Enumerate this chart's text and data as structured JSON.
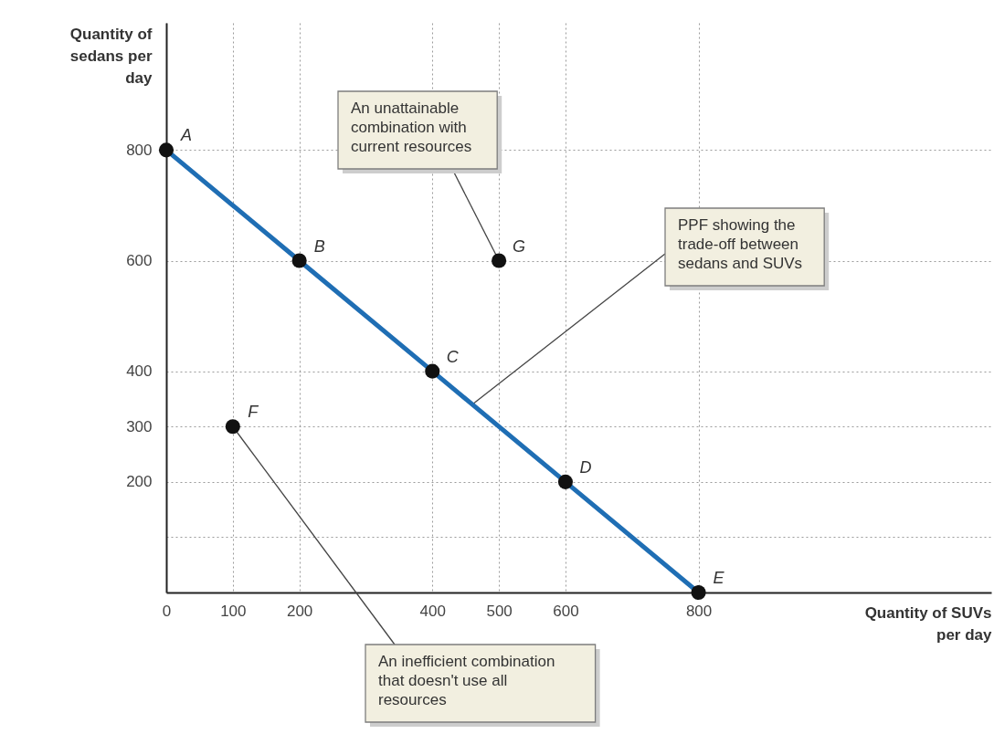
{
  "chart_data": {
    "type": "line",
    "xlabel": "Quantity of SUVs per day",
    "ylabel": "Quantity of sedans per day",
    "xlim": [
      0,
      1240
    ],
    "ylim": [
      0,
      1030
    ],
    "xticks": [
      0,
      100,
      200,
      400,
      500,
      600,
      800
    ],
    "yticks": [
      {
        "value": 100,
        "label": null
      },
      200,
      300,
      400,
      600,
      800
    ],
    "grid": true,
    "marker": "circle",
    "series": [
      {
        "color": "#1f6eb4",
        "marker": "none",
        "x": [
          0,
          200,
          400,
          600,
          800
        ],
        "values": [
          800,
          600,
          400,
          200,
          0
        ]
      },
      {
        "type": "scatter",
        "color": "#111111",
        "x": [
          0,
          200,
          400,
          600,
          800,
          100,
          500
        ],
        "values": [
          800,
          600,
          400,
          200,
          0,
          300,
          600
        ]
      }
    ],
    "annotations": [
      {
        "text": "A",
        "x": 0,
        "y": 800
      },
      {
        "text": "B",
        "x": 200,
        "y": 600
      },
      {
        "text": "C",
        "x": 400,
        "y": 400
      },
      {
        "text": "D",
        "x": 600,
        "y": 200
      },
      {
        "text": "E",
        "x": 800,
        "y": 0
      },
      {
        "text": "F",
        "x": 100,
        "y": 300
      },
      {
        "text": "G",
        "x": 500,
        "y": 600
      },
      {
        "text": "An unattainable combination with current resources",
        "x": 500,
        "y": 600
      },
      {
        "text": "PPF showing the trade-off between sedans and SUVs",
        "x": 460,
        "y": 340
      },
      {
        "text": "An inefficient combination that doesn't use all resources",
        "x": 100,
        "y": 300
      }
    ]
  }
}
